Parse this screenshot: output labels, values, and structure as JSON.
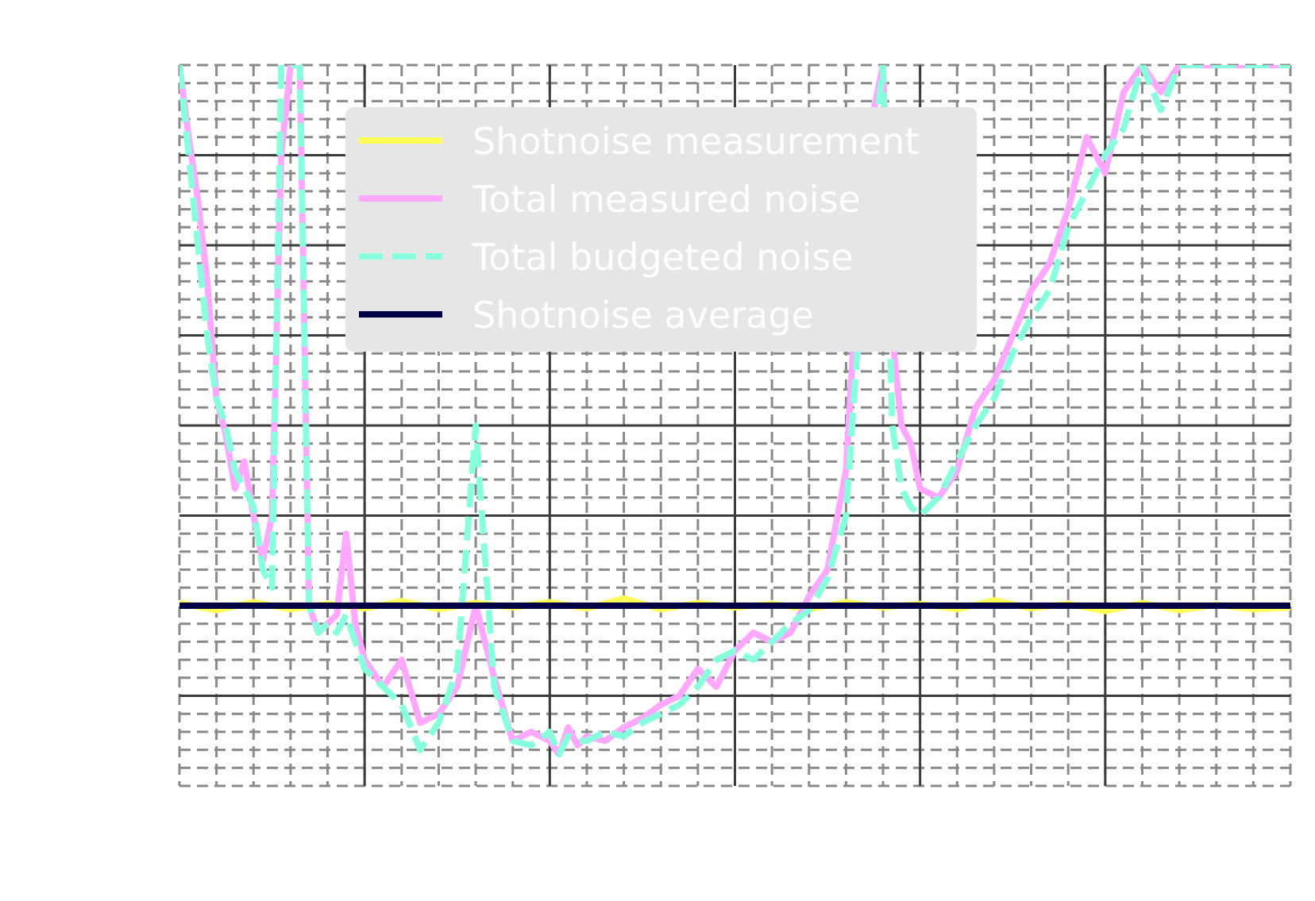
{
  "chart_data": {
    "type": "line",
    "title": "",
    "xlabel": "",
    "ylabel": "",
    "xlim": [
      0,
      600
    ],
    "ylim": [
      0,
      8
    ],
    "grid": true,
    "legend_placement": "upper-center",
    "series": [
      {
        "name": "Shotnoise measurement",
        "color": "#ffff55",
        "style": "solid",
        "x": [
          0,
          20,
          40,
          60,
          80,
          100,
          120,
          140,
          160,
          180,
          200,
          220,
          240,
          260,
          280,
          300,
          320,
          340,
          360,
          380,
          400,
          420,
          440,
          460,
          480,
          500,
          520,
          540,
          560,
          580,
          600
        ],
        "y": [
          2.03,
          1.95,
          2.04,
          1.96,
          2.02,
          1.97,
          2.05,
          1.96,
          2.03,
          1.98,
          2.04,
          1.97,
          2.08,
          1.96,
          2.03,
          1.98,
          2.02,
          1.96,
          2.04,
          1.98,
          2.02,
          1.96,
          2.06,
          1.97,
          2.02,
          1.94,
          2.03,
          1.95,
          2.01,
          1.96,
          1.98
        ]
      },
      {
        "name": "Total measured noise",
        "color": "#ffa8ff",
        "style": "solid",
        "x": [
          0,
          5,
          10,
          15,
          20,
          25,
          30,
          35,
          40,
          45,
          50,
          55,
          60,
          65,
          70,
          75,
          80,
          85,
          90,
          95,
          100,
          110,
          120,
          130,
          140,
          150,
          160,
          170,
          180,
          190,
          200,
          205,
          210,
          215,
          220,
          230,
          240,
          250,
          260,
          270,
          280,
          290,
          300,
          310,
          320,
          330,
          340,
          350,
          360,
          370,
          380,
          385,
          390,
          395,
          400,
          410,
          420,
          430,
          440,
          450,
          460,
          470,
          480,
          490,
          500,
          510,
          520,
          530,
          540,
          550,
          560,
          570,
          580,
          590,
          600
        ],
        "y": [
          8.0,
          7.2,
          6.5,
          5.6,
          4.3,
          3.9,
          3.3,
          3.6,
          3.0,
          2.5,
          3.0,
          7.0,
          8.0,
          8.0,
          2.0,
          1.7,
          1.8,
          1.9,
          2.8,
          1.8,
          1.4,
          1.1,
          1.4,
          0.7,
          0.8,
          1.1,
          2.0,
          1.2,
          0.5,
          0.6,
          0.5,
          0.35,
          0.65,
          0.45,
          0.55,
          0.5,
          0.65,
          0.75,
          0.9,
          1.0,
          1.3,
          1.1,
          1.5,
          1.7,
          1.6,
          1.7,
          2.1,
          2.4,
          3.5,
          7.0,
          8.0,
          5.0,
          4.0,
          3.8,
          3.3,
          3.2,
          3.5,
          4.2,
          4.5,
          5.0,
          5.5,
          5.8,
          6.4,
          7.2,
          6.8,
          7.7,
          8.0,
          7.7,
          8.0,
          8.0,
          8.0,
          8.0,
          8.0,
          8.0,
          8.0
        ]
      },
      {
        "name": "Total budgeted noise",
        "color": "#88ffdd",
        "style": "dashed",
        "x": [
          0,
          5,
          10,
          15,
          20,
          25,
          30,
          35,
          40,
          45,
          50,
          55,
          60,
          65,
          70,
          75,
          80,
          85,
          90,
          95,
          100,
          110,
          120,
          130,
          140,
          150,
          160,
          170,
          180,
          190,
          200,
          205,
          210,
          215,
          220,
          230,
          240,
          250,
          260,
          270,
          280,
          290,
          300,
          310,
          320,
          330,
          340,
          350,
          360,
          370,
          380,
          385,
          390,
          395,
          400,
          410,
          420,
          430,
          440,
          450,
          460,
          470,
          480,
          490,
          500,
          510,
          520,
          530,
          540,
          550,
          560,
          570,
          580,
          590,
          600
        ],
        "y": [
          8.0,
          7.0,
          6.0,
          5.0,
          4.3,
          4.0,
          3.5,
          3.3,
          3.1,
          2.4,
          2.2,
          8.0,
          8.0,
          8.0,
          2.0,
          1.7,
          1.8,
          1.7,
          1.9,
          1.6,
          1.3,
          1.1,
          0.9,
          0.4,
          0.7,
          1.3,
          4.0,
          1.1,
          0.5,
          0.45,
          0.6,
          0.35,
          0.55,
          0.5,
          0.5,
          0.6,
          0.55,
          0.7,
          0.8,
          0.9,
          1.1,
          1.4,
          1.5,
          1.4,
          1.6,
          1.8,
          1.95,
          2.3,
          3.0,
          6.0,
          8.0,
          4.0,
          3.3,
          3.1,
          3.0,
          3.2,
          3.6,
          4.0,
          4.3,
          4.8,
          5.2,
          5.5,
          6.2,
          6.6,
          7.0,
          7.3,
          8.0,
          7.5,
          8.0,
          8.0,
          8.0,
          8.0,
          8.0,
          8.0,
          8.0
        ]
      },
      {
        "name": "Shotnoise average",
        "color": "#000044",
        "style": "solid",
        "x": [
          0,
          600
        ],
        "y": [
          2.0,
          2.0
        ]
      }
    ]
  }
}
